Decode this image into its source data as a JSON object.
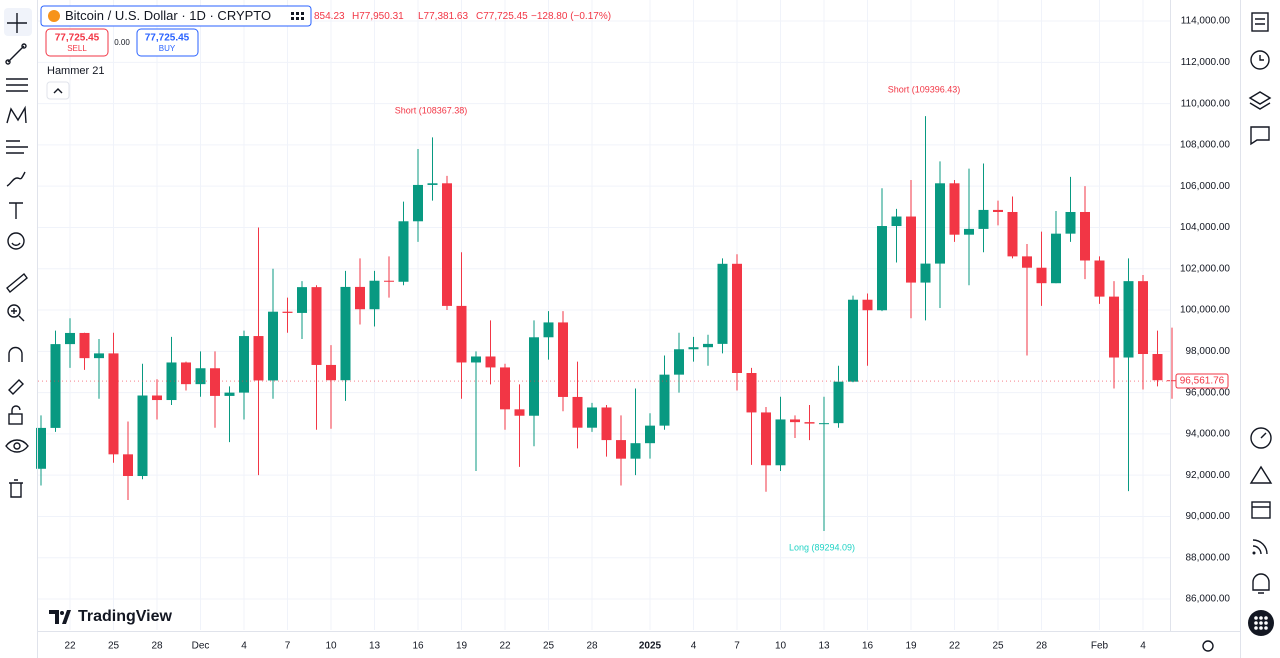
{
  "ui": {
    "symbol": "Bitcoin / U.S. Dollar · 1D · CRYPTO",
    "ohlc_open": "854.23",
    "ohlc_high": "H77,950.31",
    "ohlc_low": "L77,381.63",
    "ohlc_close": "C77,725.45",
    "ohlc_change": "−128.80 (−0.17%)",
    "sell_price": "77,725.45",
    "sell": "SELL",
    "spread": "0.00",
    "buy_price": "77,725.45",
    "buy": "BUY",
    "indicator": "Hammer 21",
    "logo": "TradingView",
    "last_price": "96,561.76"
  },
  "chart_data": {
    "type": "candlestick",
    "up_color": "#089981",
    "down_color": "#f23645",
    "grid": true,
    "annotations": [
      "Short (108367.38)",
      "Short (109396.43)",
      "Long (89294.09)"
    ],
    "categories": [
      null,
      null,
      "22",
      null,
      null,
      "25",
      null,
      null,
      "28",
      null,
      null,
      "Dec",
      null,
      null,
      "4",
      null,
      null,
      "7",
      null,
      null,
      "10",
      null,
      null,
      "13",
      null,
      null,
      "16",
      null,
      null,
      "19",
      null,
      null,
      "22",
      null,
      null,
      "25",
      null,
      null,
      "28",
      null,
      null,
      null,
      "2025",
      null,
      null,
      "4",
      null,
      null,
      "7",
      null,
      null,
      "10",
      null,
      null,
      "13",
      null,
      null,
      "16",
      null,
      null,
      "19",
      null,
      null,
      "22",
      null,
      null,
      "25",
      null,
      null,
      "28",
      null,
      null,
      null,
      "Feb",
      null,
      null,
      "4",
      null,
      null
    ],
    "open": [
      92310,
      94290,
      98350,
      98890,
      97670,
      97900,
      93010,
      91960,
      95860,
      95640,
      97460,
      96410,
      97180,
      95840,
      96000,
      98740,
      96590,
      99920,
      99860,
      101110,
      97340,
      96600,
      101120,
      100040,
      101420,
      101370,
      104300,
      106060,
      106140,
      100200,
      97460,
      97750,
      97220,
      95190,
      94880,
      98680,
      99400,
      95790,
      94300,
      95280,
      93700,
      92800,
      93550,
      94400,
      96870,
      98100,
      98200,
      98360,
      102240,
      96950,
      95040,
      92480,
      94700,
      94570,
      94500,
      94520,
      96530,
      100500,
      99990,
      104070,
      104530,
      101330,
      102250,
      106140,
      103650,
      103930,
      104850,
      104750,
      102600,
      102050,
      101300,
      103700,
      104750,
      102400,
      100650,
      97700,
      101400,
      97870,
      96600
    ],
    "high": [
      94900,
      99000,
      99600,
      98900,
      98600,
      98900,
      94600,
      97400,
      96650,
      98700,
      97500,
      98000,
      98000,
      96300,
      99000,
      104000,
      102000,
      100600,
      101400,
      101200,
      98300,
      101900,
      102500,
      101900,
      102600,
      105250,
      107800,
      108367,
      106500,
      102800,
      98000,
      99500,
      97400,
      96400,
      99500,
      99950,
      99950,
      97500,
      95500,
      95400,
      94900,
      96200,
      95000,
      97800,
      98900,
      98700,
      98800,
      102500,
      102700,
      97200,
      95300,
      95800,
      94900,
      95400,
      95800,
      97300,
      100700,
      100800,
      105900,
      104900,
      106300,
      109396,
      107200,
      106300,
      106850,
      107100,
      105300,
      105500,
      103200,
      103800,
      104800,
      106450,
      106000,
      102600,
      101400,
      102500,
      101700,
      99000,
      99150
    ],
    "low": [
      91500,
      94100,
      97200,
      97100,
      95700,
      92600,
      90800,
      91800,
      94700,
      95400,
      96100,
      95800,
      94300,
      93600,
      94700,
      92000,
      95700,
      98900,
      98600,
      94200,
      94250,
      95600,
      99300,
      99200,
      100600,
      101200,
      103300,
      105300,
      100000,
      95700,
      92200,
      96400,
      94200,
      92400,
      93400,
      97600,
      95100,
      93300,
      94100,
      92900,
      91500,
      92000,
      92800,
      94200,
      96000,
      97500,
      97300,
      97900,
      96100,
      92500,
      91200,
      92200,
      93800,
      93700,
      89294,
      94300,
      96500,
      97300,
      99950,
      102300,
      99600,
      99500,
      100100,
      103300,
      101200,
      102800,
      104100,
      102500,
      97800,
      100200,
      101300,
      103300,
      101500,
      100300,
      96200,
      91230,
      96150,
      96300,
      95700
    ],
    "close": [
      94290,
      98350,
      98890,
      97670,
      97900,
      93010,
      91960,
      95860,
      95640,
      97460,
      96410,
      97180,
      95840,
      96000,
      98740,
      96590,
      99920,
      99860,
      101110,
      97340,
      96600,
      101120,
      100040,
      101420,
      101370,
      104300,
      106060,
      106140,
      100200,
      97460,
      97750,
      97220,
      95190,
      94880,
      98680,
      99400,
      95790,
      94300,
      95280,
      93700,
      92800,
      93550,
      94400,
      96870,
      98100,
      98200,
      98360,
      102240,
      96950,
      95040,
      92480,
      94700,
      94570,
      94500,
      94520,
      96530,
      100500,
      99990,
      104070,
      104530,
      101330,
      102250,
      106140,
      103650,
      103930,
      104850,
      104750,
      102600,
      102050,
      101300,
      103700,
      104750,
      102400,
      100650,
      97700,
      101400,
      97870,
      96600,
      96560
    ],
    "ylim": [
      84500,
      115000
    ],
    "yticks": [
      {
        "value": 86000,
        "label": "86,000.00"
      },
      {
        "value": 88000,
        "label": "88,000.00"
      },
      {
        "value": 90000,
        "label": "90,000.00"
      },
      {
        "value": 92000,
        "label": "92,000.00"
      },
      {
        "value": 94000,
        "label": "94,000.00"
      },
      {
        "value": 96000,
        "label": "96,000.00"
      },
      {
        "value": 98000,
        "label": "98,000.00"
      },
      {
        "value": 100000,
        "label": "100,000.00"
      },
      {
        "value": 102000,
        "label": "102,000.00"
      },
      {
        "value": 104000,
        "label": "104,000.00"
      },
      {
        "value": 106000,
        "label": "106,000.00"
      },
      {
        "value": 108000,
        "label": "108,000.00"
      },
      {
        "value": 110000,
        "label": "110,000.00"
      },
      {
        "value": 112000,
        "label": "112,000.00"
      },
      {
        "value": 114000,
        "label": "114,000.00"
      }
    ]
  }
}
